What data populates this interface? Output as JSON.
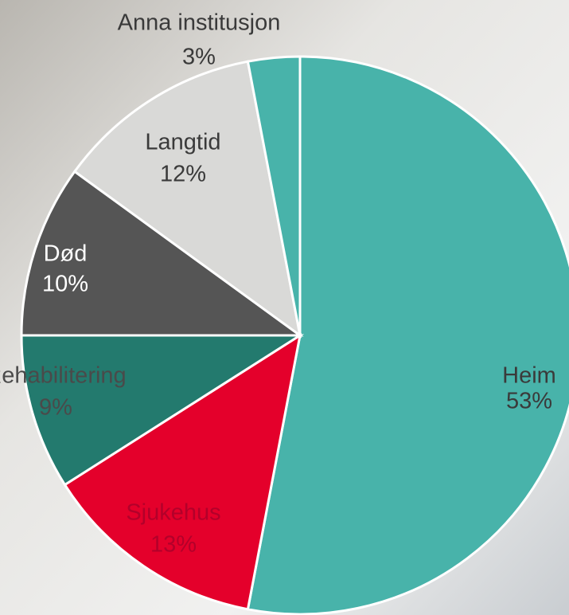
{
  "chart_data": {
    "type": "pie",
    "categories": [
      "Heim",
      "Sjukehus",
      "Rehabilitering",
      "Død",
      "Langtid",
      "Anna institusjon"
    ],
    "values": [
      53,
      13,
      9,
      10,
      12,
      3
    ],
    "value_labels": [
      "53%",
      "13%",
      "9%",
      "10%",
      "12%",
      "3%"
    ],
    "colors": [
      "#48b3aa",
      "#e4002b",
      "#237a6e",
      "#555555",
      "#d9d9d7",
      "#48b3aa"
    ]
  }
}
